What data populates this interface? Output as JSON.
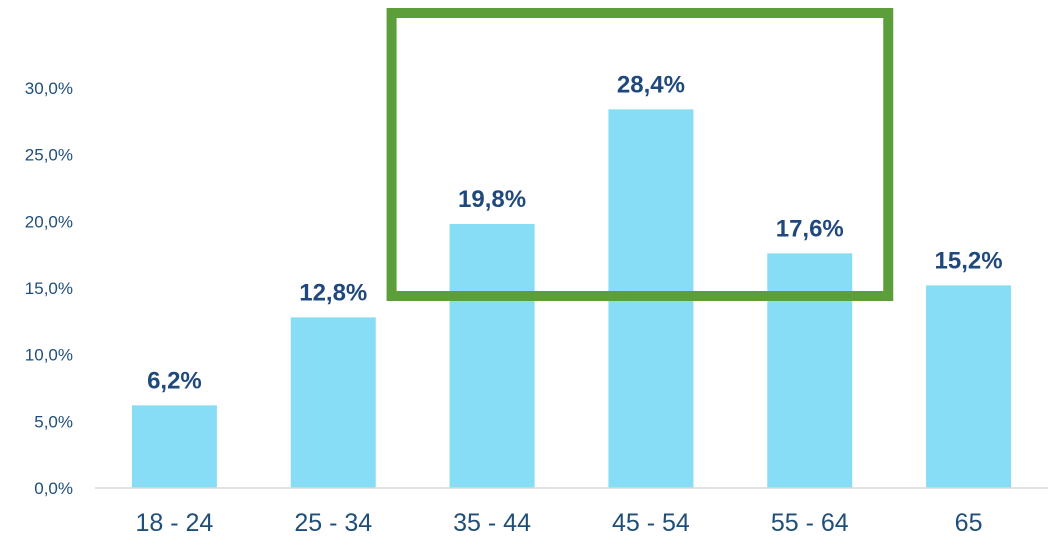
{
  "chart_data": {
    "type": "bar",
    "categories": [
      "18 - 24",
      "25 - 34",
      "35 - 44",
      "45 - 54",
      "55 - 64",
      "65"
    ],
    "values": [
      6.2,
      12.8,
      19.8,
      28.4,
      17.6,
      15.2
    ],
    "data_labels": [
      "6,2%",
      "12,8%",
      "19,8%",
      "28,4%",
      "17,6%",
      "15,2%"
    ],
    "y_ticks": [
      {
        "value": 0,
        "label": "0,0%"
      },
      {
        "value": 5,
        "label": "5,0%"
      },
      {
        "value": 10,
        "label": "10,0%"
      },
      {
        "value": 15,
        "label": "15,0%"
      },
      {
        "value": 20,
        "label": "20,0%"
      },
      {
        "value": 25,
        "label": "25,0%"
      },
      {
        "value": 30,
        "label": "30,0%"
      }
    ],
    "ylim": [
      0,
      30
    ],
    "grid": false,
    "legend": "none",
    "highlight": {
      "from_category": "35 - 44",
      "to_category": "55 - 64"
    },
    "colors": {
      "bar": "#87DDF6",
      "label_text": "#1F497D",
      "axis_text": "#1F4E79",
      "axis_line": "#D9D9D9",
      "highlight_box": "#5B9E3A"
    }
  }
}
